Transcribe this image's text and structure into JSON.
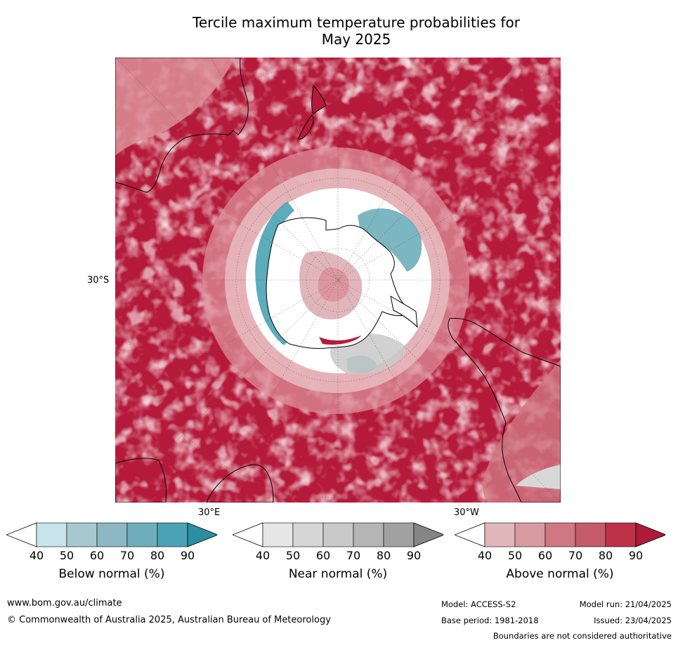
{
  "title_line1": "Tercile maximum temperature probabilities for",
  "title_line2": "May 2025",
  "map": {
    "label_30s": "30°S",
    "label_30e": "30°E",
    "label_30w": "30°W",
    "colors": {
      "above_dark": "#b51a3a",
      "above_mid": "#c94a5e",
      "above_light": "#dc8f99",
      "above_pale": "#e7b8bd",
      "near": "#d8d8d8",
      "below": "#4aa3b4",
      "below_light": "#a7ccd4",
      "land_line": "#000000"
    }
  },
  "colorbars": [
    {
      "title": "Below normal (%)",
      "ticks": [
        "40",
        "50",
        "60",
        "70",
        "80",
        "90"
      ],
      "colors": [
        "#ffffff",
        "#c9e3ea",
        "#a6c9cf",
        "#8cb7c3",
        "#6daeba",
        "#4aa3b4",
        "#2a8fa2"
      ]
    },
    {
      "title": "Near normal (%)",
      "ticks": [
        "40",
        "50",
        "60",
        "70",
        "80",
        "90"
      ],
      "colors": [
        "#ffffff",
        "#e6e6e6",
        "#d6d6d6",
        "#c9c9c9",
        "#b5b5b5",
        "#a1a1a1",
        "#858585"
      ]
    },
    {
      "title": "Above normal (%)",
      "ticks": [
        "40",
        "50",
        "60",
        "70",
        "80",
        "90"
      ],
      "colors": [
        "#ffffff",
        "#e1b6bb",
        "#d89aa1",
        "#cf7782",
        "#c55b69",
        "#bd3149",
        "#b01a38"
      ]
    }
  ],
  "footer": {
    "website": "www.bom.gov.au/climate",
    "copyright": "© Commonwealth of Australia 2025, Australian Bureau of Meteorology",
    "model": "Model: ACCESS-S2",
    "base_period": "Base period: 1981-2018",
    "model_run": "Model run: 21/04/2025",
    "issued": "Issued: 23/04/2025",
    "boundaries": "Boundaries are not considered authoritative"
  }
}
